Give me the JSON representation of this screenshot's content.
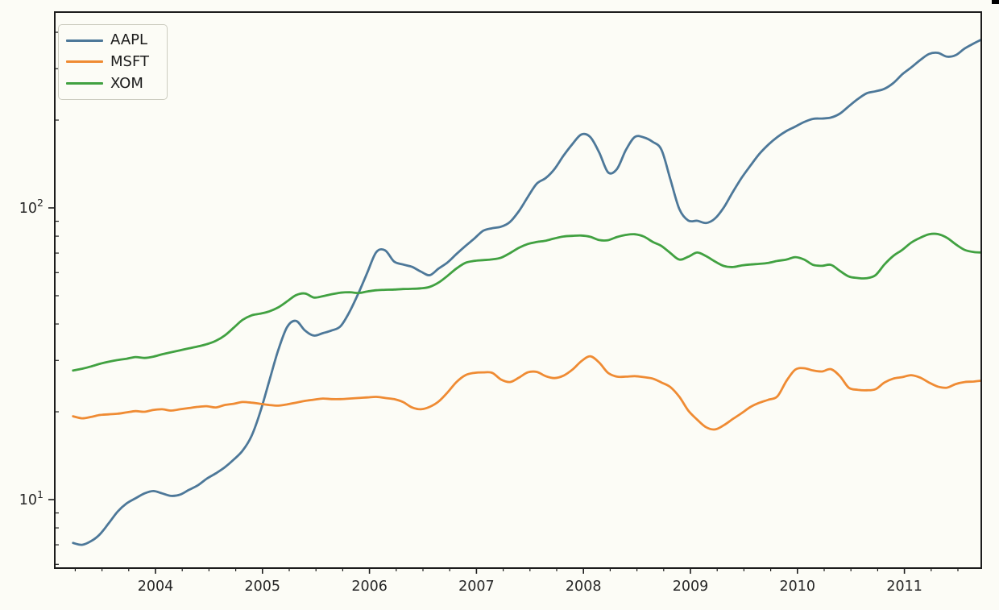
{
  "figure": {
    "background": "#fcfcf6",
    "axes": {
      "spine_color": "#1c1c1c",
      "tick_color": "#1c1c1c",
      "tick_label_color": "#262626",
      "x_tick_values": [
        2004,
        2005,
        2006,
        2007,
        2008,
        2009,
        2010,
        2011
      ],
      "x_tick_labels": [
        "2004",
        "2005",
        "2006",
        "2007",
        "2008",
        "2009",
        "2010",
        "2011"
      ],
      "y_major_tick_values": [
        10,
        100
      ],
      "y_major_tick_labels": [
        {
          "mantissa": "10",
          "exponent": "1"
        },
        {
          "mantissa": "10",
          "exponent": "2"
        }
      ],
      "y_minor_tick_values": [
        6,
        7,
        8,
        9,
        20,
        30,
        40,
        50,
        60,
        70,
        80,
        90,
        200,
        300,
        400
      ],
      "x_range_years": [
        2003.06,
        2011.75
      ],
      "y_range": [
        5.8,
        470
      ],
      "grid": "off"
    },
    "corner_mark_color": "#000000"
  },
  "chart_data": {
    "type": "line",
    "title": "",
    "xlabel": "",
    "ylabel": "",
    "y_scale": "log",
    "x_unit": "decimal_year",
    "legend_position": "upper left",
    "x": [
      2003.23,
      2003.313,
      2003.397,
      2003.48,
      2003.563,
      2003.647,
      2003.73,
      2003.813,
      2003.897,
      2003.98,
      2004.063,
      2004.147,
      2004.23,
      2004.313,
      2004.397,
      2004.48,
      2004.563,
      2004.647,
      2004.73,
      2004.813,
      2004.897,
      2004.98,
      2005.063,
      2005.147,
      2005.23,
      2005.313,
      2005.397,
      2005.48,
      2005.563,
      2005.647,
      2005.73,
      2005.813,
      2005.897,
      2005.98,
      2006.063,
      2006.147,
      2006.23,
      2006.313,
      2006.397,
      2006.48,
      2006.563,
      2006.647,
      2006.73,
      2006.813,
      2006.897,
      2006.98,
      2007.063,
      2007.147,
      2007.23,
      2007.313,
      2007.397,
      2007.48,
      2007.563,
      2007.647,
      2007.73,
      2007.813,
      2007.897,
      2007.98,
      2008.063,
      2008.147,
      2008.23,
      2008.313,
      2008.397,
      2008.48,
      2008.563,
      2008.647,
      2008.73,
      2008.813,
      2008.897,
      2008.98,
      2009.063,
      2009.147,
      2009.23,
      2009.313,
      2009.397,
      2009.48,
      2009.563,
      2009.647,
      2009.73,
      2009.813,
      2009.897,
      2009.98,
      2010.063,
      2010.147,
      2010.23,
      2010.313,
      2010.397,
      2010.48,
      2010.563,
      2010.647,
      2010.73,
      2010.813,
      2010.897,
      2010.98,
      2011.063,
      2011.147,
      2011.23,
      2011.313,
      2011.397,
      2011.48,
      2011.563,
      2011.647,
      2011.73
    ],
    "series": [
      {
        "name": "AAPL",
        "color": "#4d7899",
        "values": [
          7.1,
          7.0,
          7.2,
          7.6,
          8.3,
          9.1,
          9.7,
          10.1,
          10.5,
          10.7,
          10.5,
          10.3,
          10.4,
          10.8,
          11.2,
          11.8,
          12.3,
          12.9,
          13.7,
          14.7,
          16.5,
          20.0,
          25.5,
          32.5,
          39.0,
          41.0,
          38.0,
          36.5,
          37.2,
          38.0,
          39.3,
          44.0,
          51.0,
          60.0,
          70.5,
          71.5,
          65.5,
          64.0,
          62.8,
          60.5,
          58.8,
          62.0,
          65.0,
          69.5,
          74.0,
          78.5,
          83.5,
          85.2,
          86.2,
          89.5,
          97.5,
          109.0,
          121.0,
          126.5,
          136.0,
          151.0,
          165.5,
          178.5,
          175.0,
          155.0,
          132.5,
          136.0,
          158.0,
          175.0,
          174.5,
          168.5,
          158.0,
          125.0,
          99.0,
          90.5,
          90.3,
          88.8,
          92.0,
          100.5,
          113.5,
          127.0,
          140.0,
          153.5,
          165.0,
          175.0,
          183.5,
          190.0,
          197.0,
          202.0,
          202.5,
          204.0,
          210.5,
          223.0,
          236.0,
          247.0,
          251.0,
          256.0,
          268.0,
          287.0,
          303.0,
          321.0,
          337.0,
          340.0,
          330.0,
          334.0,
          352.0,
          366.0,
          379.0
        ]
      },
      {
        "name": "MSFT",
        "color": "#ef8b33",
        "values": [
          19.3,
          19.0,
          19.2,
          19.5,
          19.6,
          19.7,
          19.9,
          20.1,
          20.0,
          20.3,
          20.4,
          20.2,
          20.4,
          20.6,
          20.8,
          20.9,
          20.7,
          21.1,
          21.3,
          21.6,
          21.5,
          21.3,
          21.1,
          21.0,
          21.2,
          21.5,
          21.8,
          22.0,
          22.2,
          22.1,
          22.1,
          22.2,
          22.3,
          22.4,
          22.5,
          22.3,
          22.1,
          21.6,
          20.7,
          20.4,
          20.8,
          21.7,
          23.3,
          25.3,
          26.7,
          27.2,
          27.3,
          27.2,
          25.8,
          25.3,
          26.2,
          27.3,
          27.4,
          26.5,
          26.1,
          26.6,
          27.9,
          29.8,
          31.0,
          29.5,
          27.2,
          26.4,
          26.4,
          26.5,
          26.3,
          26.0,
          25.2,
          24.3,
          22.5,
          20.2,
          18.8,
          17.7,
          17.4,
          18.0,
          18.9,
          19.8,
          20.8,
          21.5,
          22.0,
          22.6,
          25.5,
          27.9,
          28.2,
          27.7,
          27.5,
          28.0,
          26.5,
          24.2,
          23.8,
          23.7,
          23.9,
          25.2,
          26.0,
          26.3,
          26.7,
          26.2,
          25.2,
          24.4,
          24.2,
          24.9,
          25.3,
          25.4,
          25.6
        ]
      },
      {
        "name": "XOM",
        "color": "#41a141",
        "values": [
          27.7,
          28.1,
          28.6,
          29.2,
          29.7,
          30.1,
          30.4,
          30.8,
          30.6,
          30.9,
          31.5,
          32.0,
          32.5,
          33.0,
          33.5,
          34.1,
          35.0,
          36.5,
          38.8,
          41.3,
          42.8,
          43.4,
          44.2,
          45.6,
          47.8,
          50.2,
          50.9,
          49.3,
          49.8,
          50.6,
          51.2,
          51.4,
          51.1,
          51.7,
          52.2,
          52.4,
          52.5,
          52.7,
          52.8,
          53.0,
          53.6,
          55.5,
          58.5,
          62.0,
          64.8,
          65.8,
          66.2,
          66.6,
          67.5,
          70.0,
          73.0,
          75.2,
          76.4,
          77.2,
          78.6,
          79.8,
          80.2,
          80.4,
          79.6,
          77.6,
          77.5,
          79.5,
          80.8,
          81.2,
          79.8,
          76.5,
          74.0,
          70.0,
          66.5,
          68.0,
          70.3,
          68.3,
          65.5,
          63.2,
          62.7,
          63.5,
          64.0,
          64.3,
          64.8,
          65.8,
          66.5,
          67.8,
          66.5,
          63.8,
          63.3,
          63.8,
          60.8,
          58.2,
          57.5,
          57.4,
          58.8,
          64.0,
          68.5,
          71.8,
          76.0,
          79.0,
          81.2,
          81.3,
          79.0,
          75.0,
          71.8,
          70.6,
          70.3
        ]
      }
    ]
  }
}
